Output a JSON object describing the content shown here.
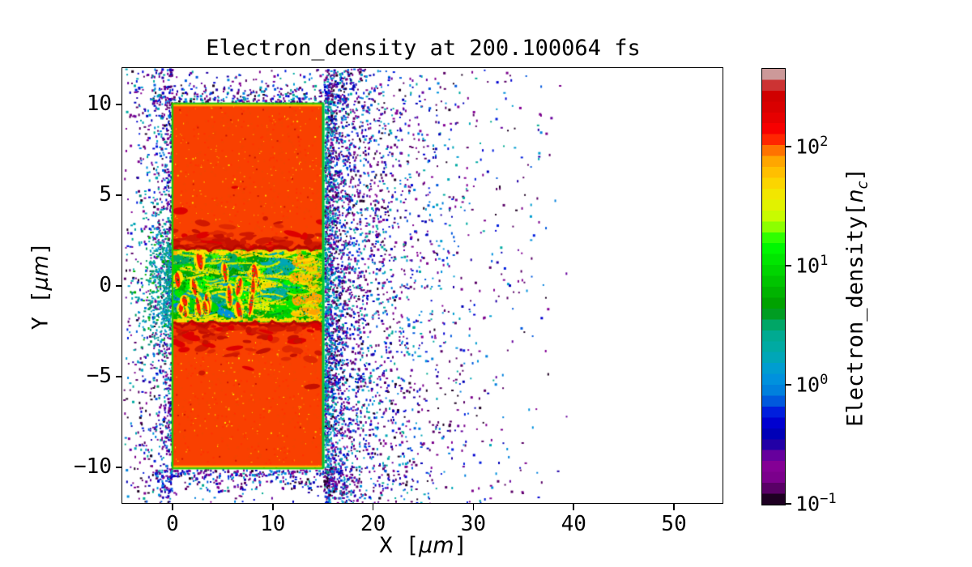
{
  "chart_data": {
    "type": "heatmap",
    "title": "Electron_density at 200.100064 fs",
    "time_fs": 200.100064,
    "xlabel": {
      "pre": "X [",
      "math": "μm",
      "post": "]"
    },
    "ylabel": {
      "pre": "Y [",
      "math": "μm",
      "post": "]"
    },
    "xlim": [
      -5,
      55
    ],
    "ylim": [
      -12,
      12
    ],
    "x_ticks": [
      {
        "v": 0,
        "label": "0"
      },
      {
        "v": 10,
        "label": "10"
      },
      {
        "v": 20,
        "label": "20"
      },
      {
        "v": 30,
        "label": "30"
      },
      {
        "v": 40,
        "label": "40"
      },
      {
        "v": 50,
        "label": "50"
      }
    ],
    "y_ticks": [
      {
        "v": 10,
        "label": "10"
      },
      {
        "v": 5,
        "label": "5"
      },
      {
        "v": 0,
        "label": "0"
      },
      {
        "v": -5,
        "label": "−5"
      },
      {
        "v": -10,
        "label": "−10"
      }
    ],
    "grid": false,
    "background": "#ffffff",
    "colorbar": {
      "label": {
        "pre": "Electron_density[",
        "math": "n",
        "sub": "c",
        "post": "]"
      },
      "scale": "log",
      "vmin": 0.1,
      "vmax": 457,
      "n_bands": 40,
      "ticks": [
        {
          "value": 100,
          "base": "10",
          "exp": "2"
        },
        {
          "value": 10,
          "base": "10",
          "exp": "1"
        },
        {
          "value": 1,
          "base": "10",
          "exp": "0"
        },
        {
          "value": 0.1,
          "base": "10",
          "exp": "−1"
        }
      ],
      "colormap_name": "nipy_spectral",
      "colormap_stops": [
        "#000000",
        "#770088",
        "#880099",
        "#0000aa",
        "#0000dd",
        "#0077dd",
        "#0099dd",
        "#00aaaa",
        "#00aa88",
        "#009900",
        "#00bb00",
        "#00dd00",
        "#00ff00",
        "#bbff00",
        "#eeee00",
        "#ffcc00",
        "#ff9900",
        "#ff0000",
        "#dd0000",
        "#cc0000",
        "#cccccc"
      ]
    },
    "features": {
      "target_slab": {
        "x_um": [
          0,
          15
        ],
        "y_um": [
          -10,
          10
        ],
        "density_nc": 100,
        "fill_color": "#f94000"
      },
      "laser_channel": {
        "x_um": [
          0,
          15
        ],
        "y_um": [
          -2,
          2
        ],
        "density_nc_range": [
          1,
          60
        ]
      },
      "blowoff_halo": {
        "x_extent_um": 38,
        "density_nc_range": [
          0.1,
          2
        ]
      }
    }
  }
}
